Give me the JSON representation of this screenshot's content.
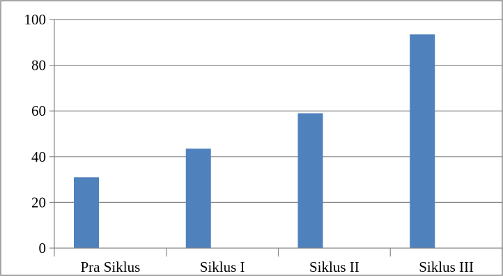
{
  "chart_data": {
    "type": "bar",
    "categories": [
      "Pra Siklus",
      "Siklus I",
      "Siklus II",
      "Siklus III"
    ],
    "values": [
      31,
      43.5,
      59,
      93.5
    ],
    "ylim": [
      0,
      100
    ],
    "yticks": [
      0,
      20,
      40,
      60,
      80,
      100
    ],
    "title": "",
    "xlabel": "",
    "ylabel": "",
    "grid": true,
    "legend": "none",
    "bar_color": "#4f81bd"
  }
}
